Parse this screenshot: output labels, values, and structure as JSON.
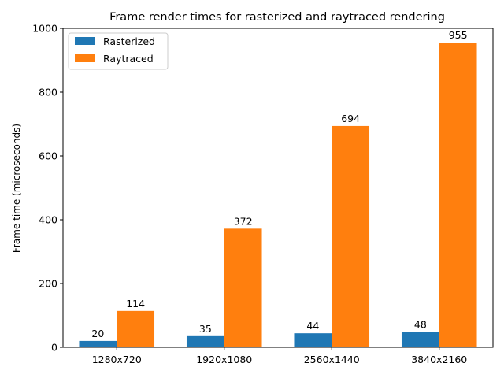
{
  "chart_data": {
    "type": "bar",
    "title": "Frame render times for rasterized and raytraced rendering",
    "xlabel": "",
    "ylabel": "Frame time (microseconds)",
    "categories": [
      "1280x720",
      "1920x1080",
      "2560x1440",
      "3840x2160"
    ],
    "series": [
      {
        "name": "Rasterized",
        "color": "#1f77b4",
        "values": [
          20,
          35,
          44,
          48
        ]
      },
      {
        "name": "Raytraced",
        "color": "#ff7f0e",
        "values": [
          114,
          372,
          694,
          955
        ]
      }
    ],
    "ylim": [
      0,
      1000
    ],
    "yticks": [
      0,
      200,
      400,
      600,
      800,
      1000
    ],
    "grid": false,
    "legend_position": "top-left"
  }
}
